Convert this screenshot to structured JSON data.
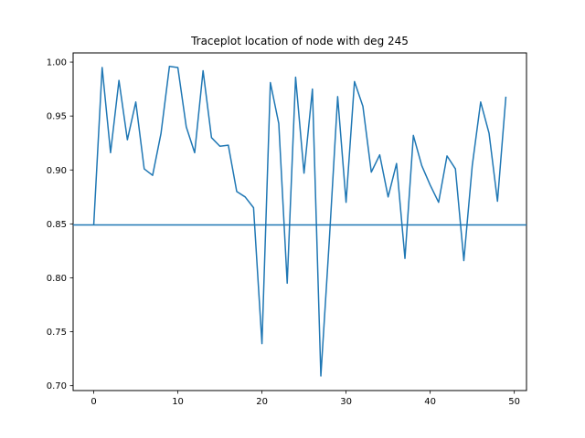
{
  "chart_data": {
    "type": "line",
    "title": "Traceplot location of node with deg 245",
    "xlabel": "",
    "ylabel": "",
    "xlim": [
      -2.45,
      51.45
    ],
    "ylim": [
      0.6955,
      1.0085
    ],
    "xticks": [
      0,
      10,
      20,
      30,
      40,
      50
    ],
    "yticks": [
      0.7,
      0.75,
      0.8,
      0.85,
      0.9,
      0.95,
      1.0
    ],
    "ytick_labels": [
      "0.70",
      "0.75",
      "0.80",
      "0.85",
      "0.90",
      "0.95",
      "1.00"
    ],
    "grid": false,
    "legend": "none",
    "series": [
      {
        "color": "#1f77b4",
        "x": [
          0,
          1,
          2,
          3,
          4,
          5,
          6,
          7,
          8,
          9,
          10,
          11,
          12,
          13,
          14,
          15,
          16,
          17,
          18,
          19,
          20,
          21,
          22,
          23,
          24,
          25,
          26,
          27,
          28,
          29,
          30,
          31,
          32,
          33,
          34,
          35,
          36,
          37,
          38,
          39,
          40,
          41,
          42,
          43,
          44,
          45,
          46,
          47,
          48,
          49
        ],
        "y": [
          0.849,
          0.995,
          0.916,
          0.983,
          0.928,
          0.963,
          0.901,
          0.895,
          0.934,
          0.996,
          0.995,
          0.94,
          0.916,
          0.992,
          0.93,
          0.922,
          0.923,
          0.88,
          0.875,
          0.865,
          0.739,
          0.981,
          0.943,
          0.795,
          0.986,
          0.897,
          0.975,
          0.709,
          0.834,
          0.968,
          0.87,
          0.982,
          0.959,
          0.898,
          0.914,
          0.875,
          0.906,
          0.818,
          0.932,
          0.904,
          0.886,
          0.87,
          0.913,
          0.901,
          0.816,
          0.904,
          0.963,
          0.934,
          0.871,
          0.968
        ]
      }
    ],
    "hlines": [
      {
        "y": 0.849,
        "color": "#1f77b4"
      }
    ]
  }
}
